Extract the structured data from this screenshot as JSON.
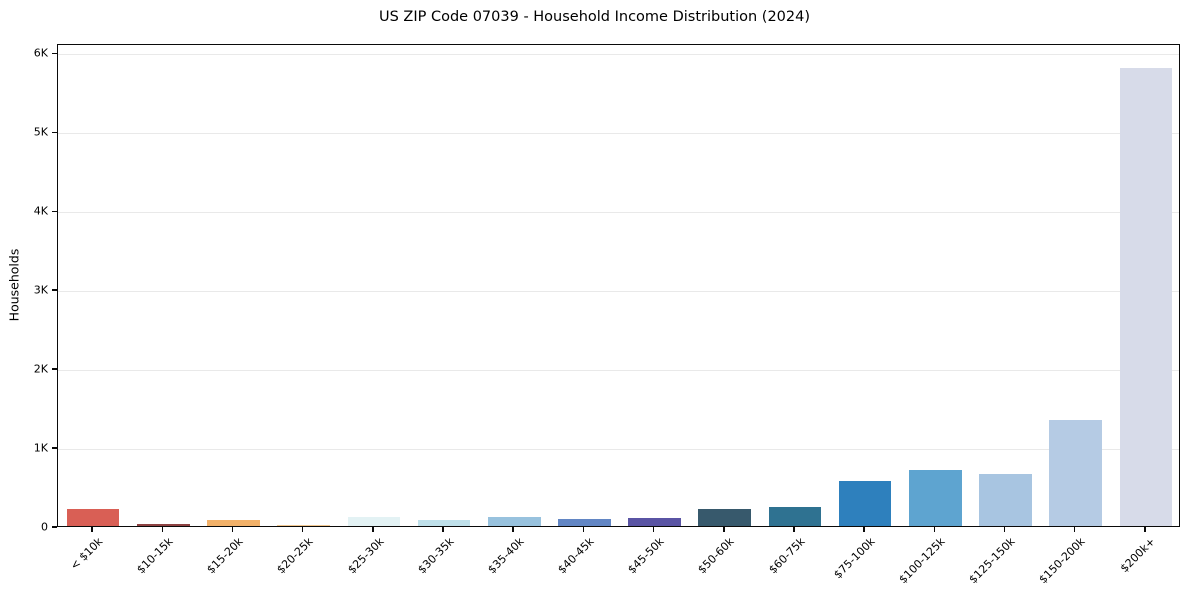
{
  "figure": {
    "title": "US ZIP Code 07039 - Household Income Distribution (2024)",
    "background": "#ffffff"
  },
  "chart_data": {
    "type": "bar",
    "title": "US ZIP Code 07039 - Household Income Distribution (2024)",
    "xlabel": "",
    "ylabel": "Households",
    "categories": [
      "< $10k",
      "$10-15k",
      "$15-20k",
      "$20-25k",
      "$25-30k",
      "$30-35k",
      "$35-40k",
      "$40-45k",
      "$45-50k",
      "$50-60k",
      "$60-75k",
      "$75-100k",
      "$100-125k",
      "$125-150k",
      "$150-200k",
      "$200k+"
    ],
    "values": [
      210,
      20,
      70,
      15,
      115,
      75,
      110,
      85,
      105,
      210,
      235,
      570,
      710,
      660,
      1340,
      5800
    ],
    "bar_colors": [
      "#d95f55",
      "#8e4242",
      "#f2b169",
      "#f3c992",
      "#e3f2f4",
      "#bfe0ea",
      "#98c2de",
      "#6286c4",
      "#5a54a4",
      "#37596c",
      "#2f7291",
      "#2e80bd",
      "#5ea4d0",
      "#a8c5e1",
      "#b5cbe4",
      "#d7dbe9"
    ],
    "ylim": [
      0,
      6120
    ],
    "yticks": [
      {
        "value": 0,
        "label": "0"
      },
      {
        "value": 1000,
        "label": "1K"
      },
      {
        "value": 2000,
        "label": "2K"
      },
      {
        "value": 3000,
        "label": "3K"
      },
      {
        "value": 4000,
        "label": "4K"
      },
      {
        "value": 5000,
        "label": "5K"
      },
      {
        "value": 6000,
        "label": "6K"
      }
    ],
    "grid": "horizontal",
    "grid_color": "#e9e9e9",
    "axis_color": "#0a0a0a",
    "legend": "none",
    "x_tick_rotation_deg": 45,
    "bar_width_fraction": 0.75
  }
}
